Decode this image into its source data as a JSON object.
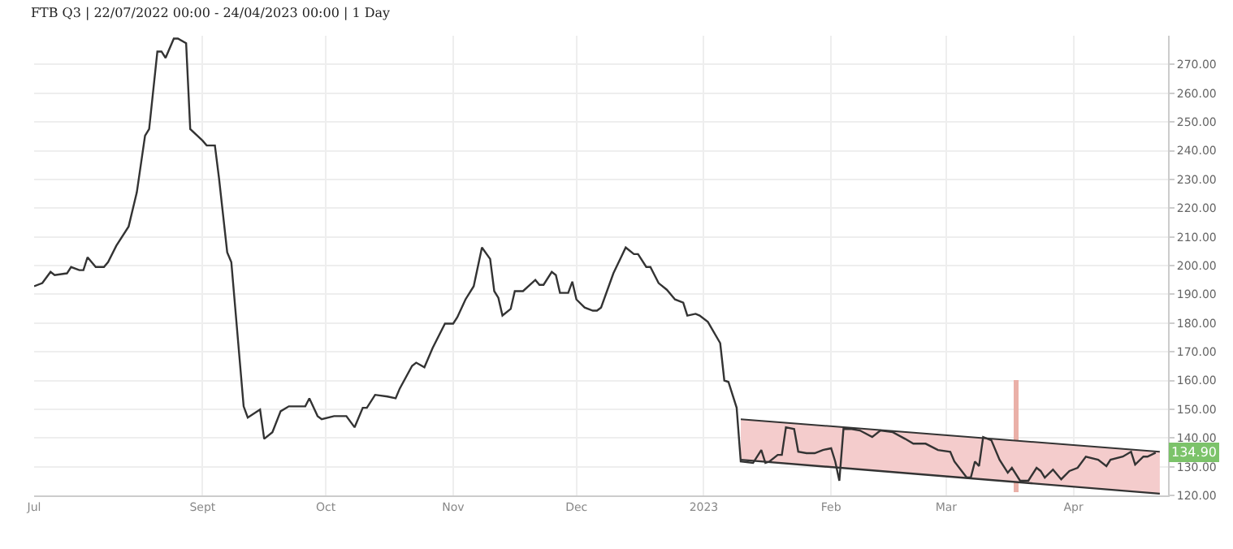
{
  "chart_data": {
    "type": "line",
    "title": "FTB Q3 | 22/07/2022 00:00 - 24/04/2023 00:00 | 1 Day",
    "xlim": [
      "2022-07-22",
      "2023-04-24"
    ],
    "xticks": [
      {
        "value": "2022-07-22",
        "label": "Jul"
      },
      {
        "value": "2022-09-01",
        "label": "Sept"
      },
      {
        "value": "2022-10-01",
        "label": "Oct"
      },
      {
        "value": "2022-11-01",
        "label": "Nov"
      },
      {
        "value": "2022-12-01",
        "label": "Dec"
      },
      {
        "value": "2023-01-01",
        "label": "2023"
      },
      {
        "value": "2023-02-01",
        "label": "Feb"
      },
      {
        "value": "2023-03-01",
        "label": "Mar"
      },
      {
        "value": "2023-04-01",
        "label": "Apr"
      }
    ],
    "ylim": [
      120,
      280
    ],
    "yticks": [
      {
        "value": 120,
        "label": "120.00"
      },
      {
        "value": 130,
        "label": "130.00"
      },
      {
        "value": 140,
        "label": "140.00"
      },
      {
        "value": 150,
        "label": "150.00"
      },
      {
        "value": 160,
        "label": "160.00"
      },
      {
        "value": 170,
        "label": "170.00"
      },
      {
        "value": 180,
        "label": "180.00"
      },
      {
        "value": 190,
        "label": "190.00"
      },
      {
        "value": 200,
        "label": "200.00"
      },
      {
        "value": 210,
        "label": "210.00"
      },
      {
        "value": 220,
        "label": "220.00"
      },
      {
        "value": 230,
        "label": "230.00"
      },
      {
        "value": 240,
        "label": "240.00"
      },
      {
        "value": 250,
        "label": "250.00"
      },
      {
        "value": 260,
        "label": "260.00"
      },
      {
        "value": 270,
        "label": "270.00"
      }
    ],
    "grid": true,
    "legend": false,
    "marker": "none",
    "line_style": "solid",
    "series": [
      {
        "type": "line",
        "color": "#333333",
        "x": [
          "2023-01-10",
          "2023-04-22"
        ],
        "values": [
          132.4,
          120.6
        ]
      },
      {
        "type": "area",
        "color": "#f4cccc",
        "x": [
          "2023-01-10",
          "2023-04-22"
        ],
        "values": [
          146.5,
          135.2
        ]
      },
      {
        "type": "bar",
        "color": "#eab0a8",
        "x": [
          "2023-03-18"
        ],
        "base": [
          121
        ],
        "values": [
          39
        ]
      },
      {
        "color": "#333333",
        "x": [
          "2022-07-22",
          "2022-07-24",
          "2022-07-26",
          "2022-07-27",
          "2022-07-30",
          "2022-07-31",
          "2022-08-02",
          "2022-08-03",
          "2022-08-04",
          "2022-08-06",
          "2022-08-08",
          "2022-08-09",
          "2022-08-11",
          "2022-08-14",
          "2022-08-16",
          "2022-08-18",
          "2022-08-19",
          "2022-08-21",
          "2022-08-22",
          "2022-08-23",
          "2022-08-25",
          "2022-08-26",
          "2022-08-28",
          "2022-08-29",
          "2022-09-01",
          "2022-09-02",
          "2022-09-04",
          "2022-09-05",
          "2022-09-07",
          "2022-09-08",
          "2022-09-11",
          "2022-09-12",
          "2022-09-15",
          "2022-09-16",
          "2022-09-18",
          "2022-09-20",
          "2022-09-22",
          "2022-09-26",
          "2022-09-27",
          "2022-09-29",
          "2022-09-30",
          "2022-10-03",
          "2022-10-06",
          "2022-10-08",
          "2022-10-10",
          "2022-10-11",
          "2022-10-13",
          "2022-10-16",
          "2022-10-18",
          "2022-10-19",
          "2022-10-22",
          "2022-10-23",
          "2022-10-25",
          "2022-10-27",
          "2022-10-30",
          "2022-11-01",
          "2022-11-02",
          "2022-11-04",
          "2022-11-06",
          "2022-11-08",
          "2022-11-10",
          "2022-11-11",
          "2022-11-12",
          "2022-11-13",
          "2022-11-15",
          "2022-11-16",
          "2022-11-18",
          "2022-11-21",
          "2022-11-22",
          "2022-11-23",
          "2022-11-25",
          "2022-11-26",
          "2022-11-27",
          "2022-11-29",
          "2022-11-30",
          "2022-12-01",
          "2022-12-03",
          "2022-12-05",
          "2022-12-06",
          "2022-12-07",
          "2022-12-10",
          "2022-12-13",
          "2022-12-15",
          "2022-12-16",
          "2022-12-18",
          "2022-12-19",
          "2022-12-21",
          "2022-12-23",
          "2022-12-25",
          "2022-12-27",
          "2022-12-28",
          "2022-12-30",
          "2022-12-31",
          "2023-01-02",
          "2023-01-05",
          "2023-01-06",
          "2023-01-07",
          "2023-01-09",
          "2023-01-10",
          "2023-01-13",
          "2023-01-15",
          "2023-01-16",
          "2023-01-17",
          "2023-01-19",
          "2023-01-20",
          "2023-01-21",
          "2023-01-23",
          "2023-01-24",
          "2023-01-26",
          "2023-01-28",
          "2023-01-30",
          "2023-02-01",
          "2023-02-02",
          "2023-02-03",
          "2023-02-04",
          "2023-02-06",
          "2023-02-08",
          "2023-02-11",
          "2023-02-13",
          "2023-02-16",
          "2023-02-19",
          "2023-02-21",
          "2023-02-24",
          "2023-02-27",
          "2023-03-02",
          "2023-03-03",
          "2023-03-06",
          "2023-03-07",
          "2023-03-08",
          "2023-03-09",
          "2023-03-10",
          "2023-03-12",
          "2023-03-14",
          "2023-03-16",
          "2023-03-17",
          "2023-03-19",
          "2023-03-21",
          "2023-03-23",
          "2023-03-24",
          "2023-03-25",
          "2023-03-27",
          "2023-03-28",
          "2023-03-29",
          "2023-03-31",
          "2023-04-02",
          "2023-04-04",
          "2023-04-07",
          "2023-04-09",
          "2023-04-10",
          "2023-04-13",
          "2023-04-15",
          "2023-04-16",
          "2023-04-18",
          "2023-04-19",
          "2023-04-21"
        ],
        "values": [
          192.8,
          193.9,
          197.8,
          196.7,
          197.3,
          199.5,
          198.4,
          198.4,
          202.9,
          199.5,
          199.5,
          201.2,
          206.9,
          213.6,
          225.5,
          245.2,
          247.5,
          274.5,
          274.5,
          272.3,
          279,
          279,
          277.4,
          247.5,
          243.5,
          241.8,
          241.8,
          230.5,
          204.6,
          201.2,
          151,
          147.1,
          149.9,
          139.7,
          142,
          149.3,
          151,
          151,
          153.8,
          147.6,
          146.5,
          147.6,
          147.6,
          143.7,
          150.5,
          150.5,
          155,
          154.4,
          153.8,
          157.2,
          165.1,
          166.2,
          164.6,
          171.3,
          179.8,
          179.8,
          182,
          188.2,
          192.8,
          206.3,
          202.3,
          191.1,
          188.8,
          182.6,
          184.9,
          191.1,
          191.1,
          195,
          193.3,
          193.3,
          197.8,
          196.7,
          190.5,
          190.5,
          194.4,
          188.2,
          185.4,
          184.3,
          184.3,
          185.4,
          197.3,
          206.3,
          204,
          204,
          199.5,
          199.5,
          193.9,
          191.6,
          188.2,
          187.1,
          182.6,
          183.2,
          182.6,
          180.4,
          173,
          160,
          159.5,
          150.5,
          131.8,
          131.3,
          135.8,
          131.3,
          131.8,
          134.1,
          134.1,
          143.7,
          143.1,
          135.2,
          134.7,
          134.7,
          135.8,
          136.4,
          131.8,
          125.1,
          143.1,
          143.1,
          142.6,
          140.3,
          142.6,
          142,
          139.7,
          138,
          138,
          135.8,
          135.2,
          131.8,
          126.2,
          126.2,
          131.8,
          130.2,
          140.3,
          139.2,
          132.4,
          127.9,
          129.6,
          125.1,
          125.1,
          129.6,
          128.5,
          126.2,
          129,
          127.3,
          125.6,
          128.5,
          129.6,
          133.5,
          132.4,
          130.2,
          132.4,
          133.5,
          135.2,
          130.7,
          133.5,
          133.5,
          134.9
        ],
        "value_labels": [
          null,
          null,
          null,
          null,
          null,
          null,
          null,
          null,
          null,
          null,
          null,
          null,
          null,
          null,
          null,
          null,
          null,
          null,
          null,
          null,
          null,
          null,
          null,
          null,
          null,
          null,
          null,
          null,
          null,
          null,
          null,
          null,
          null,
          null,
          null,
          null,
          null,
          null,
          null,
          null,
          null,
          null,
          null,
          null,
          null,
          null,
          null,
          null,
          null,
          null,
          null,
          null,
          null,
          null,
          null,
          null,
          null,
          null,
          null,
          null,
          null,
          null,
          null,
          null,
          null,
          null,
          null,
          null,
          null,
          null,
          null,
          null,
          null,
          null,
          null,
          null,
          null,
          null,
          null,
          null,
          null,
          null,
          null,
          null,
          null,
          null,
          null,
          null,
          null,
          null,
          null,
          null,
          null,
          null,
          null,
          null,
          null,
          null,
          null,
          null,
          null,
          null,
          null,
          null,
          null,
          null,
          null,
          null,
          null,
          null,
          null,
          null,
          null,
          null,
          null,
          null,
          null,
          null,
          null,
          null,
          null,
          null,
          null,
          null,
          null,
          null,
          null,
          null,
          null,
          null,
          null,
          null,
          null,
          null,
          null,
          null,
          null,
          null,
          null,
          null,
          null,
          null,
          null,
          null,
          null,
          null,
          null,
          null,
          null,
          null,
          null,
          null,
          null,
          null,
          "134.90"
        ]
      }
    ]
  }
}
